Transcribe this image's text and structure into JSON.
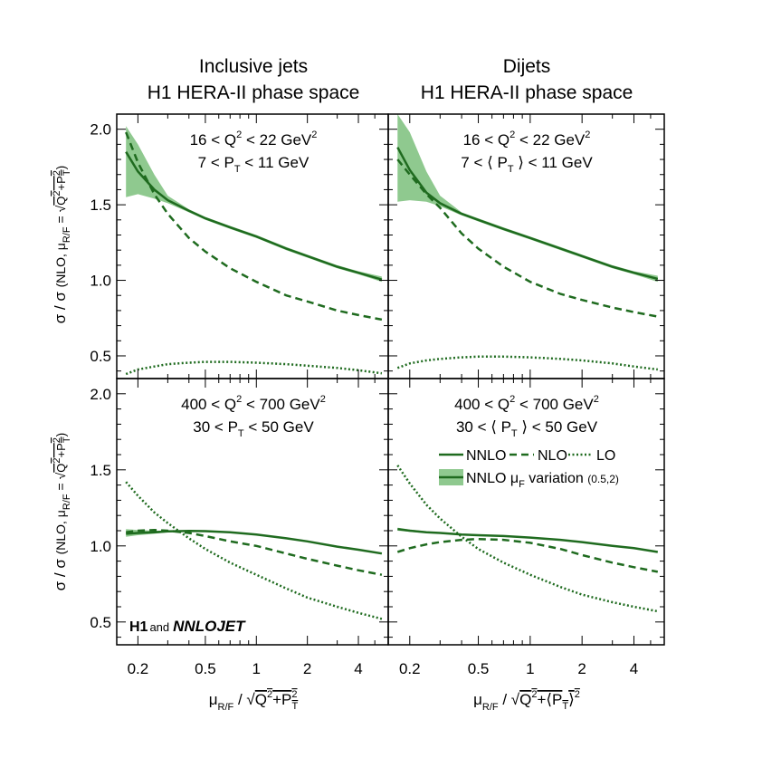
{
  "figure": {
    "columns": [
      {
        "title_line1": "Inclusive jets",
        "title_line2": "H1 HERA-II phase space"
      },
      {
        "title_line1": "Dijets",
        "title_line2": "H1 HERA-II phase space"
      }
    ],
    "y_axis_label": "σ / σ (NLO, μ_R/F = √(Q²+P_T²))",
    "x_axis_labels": [
      "μ_R/F / √(Q²+P_T²)",
      "μ_R/F / √(Q²+⟨P_T⟩²)"
    ],
    "logo": {
      "h1": "H1",
      "and": "and",
      "nnlojet": "NNLOJET"
    },
    "legend": {
      "nnlo": "NNLO",
      "nlo": "NLO",
      "lo": "LO",
      "band": "NNLO μ_F variation",
      "band_range": "(0.5,2)"
    },
    "colors": {
      "line": "#1f6b1f",
      "band": "#8fc98f"
    }
  },
  "chart_data": [
    {
      "type": "line",
      "panel": "top-left",
      "annotation": [
        "16 < Q² < 22 GeV²",
        "7 < P_T < 11 GeV"
      ],
      "xscale": "log",
      "xlim": [
        0.15,
        6.0
      ],
      "ylim": [
        0.35,
        2.1
      ],
      "xticks": [
        0.2,
        0.5,
        1,
        2,
        4
      ],
      "yticks": [
        0.5,
        1.0,
        1.5,
        2.0
      ],
      "x": [
        0.17,
        0.2,
        0.25,
        0.3,
        0.4,
        0.5,
        0.7,
        1,
        1.5,
        2,
        3,
        4,
        5.5
      ],
      "series": [
        {
          "name": "NNLO",
          "values": [
            1.85,
            1.72,
            1.6,
            1.53,
            1.46,
            1.41,
            1.35,
            1.29,
            1.21,
            1.16,
            1.09,
            1.05,
            1.005
          ]
        },
        {
          "name": "NLO",
          "values": [
            1.98,
            1.78,
            1.57,
            1.44,
            1.28,
            1.19,
            1.08,
            0.99,
            0.9,
            0.86,
            0.8,
            0.77,
            0.74
          ]
        },
        {
          "name": "LO",
          "values": [
            0.38,
            0.41,
            0.43,
            0.445,
            0.455,
            0.46,
            0.46,
            0.455,
            0.445,
            0.435,
            0.42,
            0.405,
            0.385
          ]
        },
        {
          "name": "NNLO band upper",
          "values": [
            2.02,
            1.9,
            1.7,
            1.56,
            1.47,
            1.42,
            1.36,
            1.3,
            1.22,
            1.17,
            1.1,
            1.06,
            1.025
          ]
        },
        {
          "name": "NNLO band lower",
          "values": [
            1.55,
            1.57,
            1.54,
            1.51,
            1.45,
            1.4,
            1.34,
            1.28,
            1.2,
            1.15,
            1.08,
            1.04,
            0.99
          ]
        }
      ]
    },
    {
      "type": "line",
      "panel": "top-right",
      "annotation": [
        "16 < Q² < 22 GeV²",
        "7 < ⟨ P_T ⟩ < 11 GeV"
      ],
      "xscale": "log",
      "xlim": [
        0.15,
        6.0
      ],
      "ylim": [
        0.35,
        2.1
      ],
      "xticks": [
        0.2,
        0.5,
        1,
        2,
        4
      ],
      "yticks": [
        0.5,
        1.0,
        1.5,
        2.0
      ],
      "x": [
        0.17,
        0.2,
        0.25,
        0.3,
        0.4,
        0.5,
        0.7,
        1,
        1.5,
        2,
        3,
        4,
        5.5
      ],
      "series": [
        {
          "name": "NNLO",
          "values": [
            1.88,
            1.73,
            1.58,
            1.51,
            1.44,
            1.4,
            1.34,
            1.28,
            1.21,
            1.16,
            1.09,
            1.05,
            1.01
          ]
        },
        {
          "name": "NLO",
          "values": [
            1.8,
            1.7,
            1.57,
            1.48,
            1.31,
            1.21,
            1.09,
            0.99,
            0.91,
            0.87,
            0.82,
            0.79,
            0.76
          ]
        },
        {
          "name": "LO",
          "values": [
            0.42,
            0.45,
            0.47,
            0.48,
            0.49,
            0.495,
            0.495,
            0.49,
            0.48,
            0.47,
            0.45,
            0.43,
            0.41
          ]
        },
        {
          "name": "NNLO band upper",
          "values": [
            2.1,
            1.98,
            1.72,
            1.56,
            1.45,
            1.41,
            1.35,
            1.29,
            1.22,
            1.17,
            1.1,
            1.06,
            1.03
          ]
        },
        {
          "name": "NNLO band lower",
          "values": [
            1.52,
            1.53,
            1.52,
            1.49,
            1.43,
            1.39,
            1.33,
            1.27,
            1.2,
            1.15,
            1.08,
            1.04,
            0.99
          ]
        }
      ]
    },
    {
      "type": "line",
      "panel": "bottom-left",
      "annotation": [
        "400 < Q² < 700 GeV²",
        "30 < P_T < 50 GeV"
      ],
      "xscale": "log",
      "xlim": [
        0.15,
        6.0
      ],
      "ylim": [
        0.35,
        2.1
      ],
      "xticks": [
        0.2,
        0.5,
        1,
        2,
        4
      ],
      "yticks": [
        0.5,
        1.0,
        1.5,
        2.0
      ],
      "x": [
        0.17,
        0.2,
        0.25,
        0.3,
        0.4,
        0.5,
        0.7,
        1,
        1.5,
        2,
        3,
        4,
        5.5
      ],
      "series": [
        {
          "name": "NNLO",
          "values": [
            1.08,
            1.085,
            1.09,
            1.095,
            1.098,
            1.097,
            1.09,
            1.075,
            1.05,
            1.03,
            0.995,
            0.975,
            0.95
          ]
        },
        {
          "name": "NLO",
          "values": [
            1.09,
            1.1,
            1.105,
            1.1,
            1.085,
            1.065,
            1.03,
            1.0,
            0.95,
            0.915,
            0.87,
            0.84,
            0.81
          ]
        },
        {
          "name": "LO",
          "values": [
            1.42,
            1.33,
            1.22,
            1.15,
            1.05,
            0.98,
            0.89,
            0.81,
            0.72,
            0.66,
            0.6,
            0.56,
            0.52
          ]
        },
        {
          "name": "NNLO band upper",
          "values": [
            1.11,
            1.105,
            1.1,
            1.1,
            1.1,
            1.099,
            1.092,
            1.077,
            1.052,
            1.032,
            0.997,
            0.977,
            0.952
          ]
        },
        {
          "name": "NNLO band lower",
          "values": [
            1.06,
            1.07,
            1.08,
            1.09,
            1.096,
            1.095,
            1.088,
            1.073,
            1.048,
            1.028,
            0.993,
            0.973,
            0.948
          ]
        }
      ]
    },
    {
      "type": "line",
      "panel": "bottom-right",
      "annotation": [
        "400 < Q² < 700 GeV²",
        "30 < ⟨ P_T ⟩ < 50 GeV"
      ],
      "xscale": "log",
      "xlim": [
        0.15,
        6.0
      ],
      "ylim": [
        0.35,
        2.1
      ],
      "xticks": [
        0.2,
        0.5,
        1,
        2,
        4
      ],
      "yticks": [
        0.5,
        1.0,
        1.5,
        2.0
      ],
      "x": [
        0.17,
        0.2,
        0.25,
        0.3,
        0.4,
        0.5,
        0.7,
        1,
        1.5,
        2,
        3,
        4,
        5.5
      ],
      "series": [
        {
          "name": "NNLO",
          "values": [
            1.11,
            1.1,
            1.09,
            1.085,
            1.075,
            1.07,
            1.065,
            1.055,
            1.04,
            1.025,
            1.0,
            0.985,
            0.96
          ]
        },
        {
          "name": "NLO",
          "values": [
            0.96,
            0.985,
            1.01,
            1.025,
            1.04,
            1.045,
            1.04,
            1.02,
            0.98,
            0.94,
            0.89,
            0.86,
            0.83
          ]
        },
        {
          "name": "LO",
          "values": [
            1.53,
            1.41,
            1.27,
            1.18,
            1.06,
            0.98,
            0.89,
            0.81,
            0.73,
            0.68,
            0.63,
            0.6,
            0.57
          ]
        },
        {
          "name": "NNLO band upper",
          "values": [
            1.12,
            1.108,
            1.096,
            1.089,
            1.078,
            1.073,
            1.067,
            1.057,
            1.042,
            1.027,
            1.002,
            0.987,
            0.962
          ]
        },
        {
          "name": "NNLO band lower",
          "values": [
            1.1,
            1.092,
            1.084,
            1.081,
            1.072,
            1.067,
            1.063,
            1.053,
            1.038,
            1.023,
            0.998,
            0.983,
            0.958
          ]
        }
      ]
    }
  ]
}
